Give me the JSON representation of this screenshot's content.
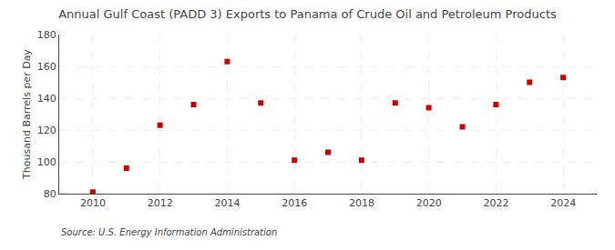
{
  "chart_data": {
    "type": "scatter",
    "title": "Annual Gulf Coast (PADD 3) Exports to Panama of Crude Oil and Petroleum Products",
    "ylabel": "Thousand Barrels per Day",
    "annotations": [
      "Source: U.S. Energy Information Administration"
    ],
    "x": [
      2010,
      2011,
      2012,
      2013,
      2014,
      2015,
      2016,
      2017,
      2018,
      2019,
      2020,
      2021,
      2022,
      2023,
      2024
    ],
    "values": [
      81,
      96,
      123,
      136,
      163,
      137,
      101,
      106,
      101,
      137,
      134,
      122,
      136,
      150,
      153
    ],
    "color": "#cc0000",
    "marker": "square",
    "xlim": [
      2009,
      2025
    ],
    "xticks": [
      2010,
      2012,
      2014,
      2016,
      2018,
      2020,
      2022,
      2024
    ],
    "ylim": [
      80,
      180
    ],
    "yticks": [
      80,
      100,
      120,
      140,
      160,
      180
    ],
    "grid": true
  }
}
